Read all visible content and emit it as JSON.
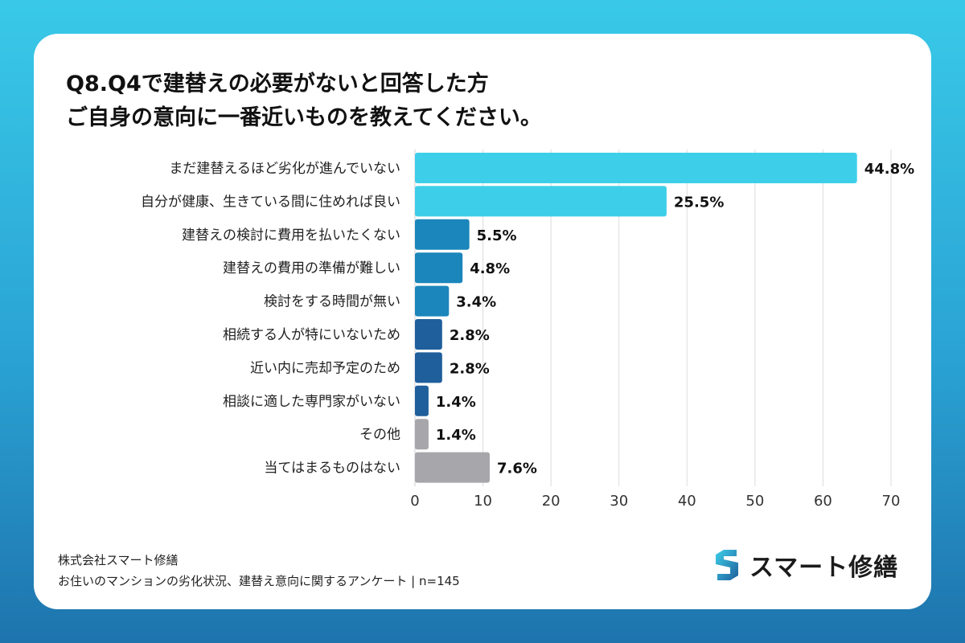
{
  "title": {
    "line1": "Q8.Q4で建替えの必要がないと回答した方",
    "line2": "ご自身の意向に一番近いものを教えてください。"
  },
  "chart_data": {
    "type": "bar",
    "orientation": "horizontal",
    "categories": [
      "まだ建替えるほど劣化が進んでいない",
      "自分が健康、生きている間に住めれば良い",
      "建替えの検討に費用を払いたくない",
      "建替えの費用の準備が難しい",
      "検討をする時間が無い",
      "相続する人が特にいないため",
      "近い内に売却予定のため",
      "相談に適した専門家がいない",
      "その他",
      "当てはまるものはない"
    ],
    "values": [
      65,
      37,
      8,
      7,
      5,
      4,
      4,
      2,
      2,
      11
    ],
    "data_labels": [
      "44.8%",
      "25.5%",
      "5.5%",
      "4.8%",
      "3.4%",
      "2.8%",
      "2.8%",
      "1.4%",
      "1.4%",
      "7.6%"
    ],
    "colors": [
      "#3dcfe9",
      "#3dcfe9",
      "#1b86bb",
      "#1b86bb",
      "#1b86bb",
      "#1f5f9b",
      "#1f5f9b",
      "#1f5f9b",
      "#a7a7ab",
      "#a7a7ab"
    ],
    "xlim": [
      0,
      70
    ],
    "xticks": [
      "0",
      "10",
      "20",
      "30",
      "40",
      "50",
      "60",
      "70"
    ],
    "grid": "vertical",
    "xlabel": "",
    "ylabel": ""
  },
  "footer": {
    "company": "株式会社スマート修繕",
    "survey": "お住いのマンションの劣化状況、建替え意向に関するアンケート | n=145"
  },
  "logo": {
    "text": "スマート修繕",
    "icon": "s-hexagon-logo",
    "colors": [
      "#3dcfe9",
      "#1f5f9b"
    ]
  }
}
